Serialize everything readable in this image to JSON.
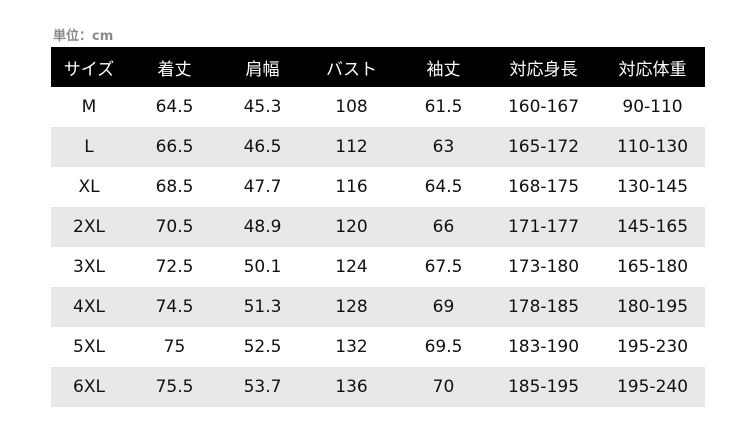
{
  "unit_label": "単位：cm",
  "headers": [
    "サイズ",
    "着丈",
    "肩幅",
    "バスト",
    "袖丈",
    "対応身長",
    "対応体重"
  ],
  "rows": [
    [
      "M",
      "64.5",
      "45.3",
      "108",
      "61.5",
      "160-167",
      "90-110"
    ],
    [
      "L",
      "66.5",
      "46.5",
      "112",
      "63",
      "165-172",
      "110-130"
    ],
    [
      "XL",
      "68.5",
      "47.7",
      "116",
      "64.5",
      "168-175",
      "130-145"
    ],
    [
      "2XL",
      "70.5",
      "48.9",
      "120",
      "66",
      "171-177",
      "145-165"
    ],
    [
      "3XL",
      "72.5",
      "50.1",
      "124",
      "67.5",
      "173-180",
      "165-180"
    ],
    [
      "4XL",
      "74.5",
      "51.3",
      "128",
      "69",
      "178-185",
      "180-195"
    ],
    [
      "5XL",
      "75",
      "52.5",
      "132",
      "69.5",
      "183-190",
      "195-230"
    ],
    [
      "6XL",
      "75.5",
      "53.7",
      "136",
      "70",
      "185-195",
      "195-240"
    ]
  ],
  "colors": {
    "header_bg": "#000000",
    "header_text": "#ffffff",
    "stripe": "#e8e8e8",
    "unit_text": "#8a8a8a"
  }
}
